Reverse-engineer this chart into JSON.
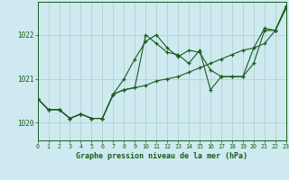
{
  "xlabel": "Graphe pression niveau de la mer (hPa)",
  "background_color": "#ceeaf0",
  "grid_color": "#aacccc",
  "line_color": "#1a5c1a",
  "x_ticks": [
    0,
    1,
    2,
    3,
    4,
    5,
    6,
    7,
    8,
    9,
    10,
    11,
    12,
    13,
    14,
    15,
    16,
    17,
    18,
    19,
    20,
    21,
    22,
    23
  ],
  "ylim": [
    1019.6,
    1022.75
  ],
  "xlim": [
    0,
    23
  ],
  "yticks": [
    1020,
    1021,
    1022
  ],
  "series": [
    [
      1020.55,
      1020.3,
      1020.3,
      1020.1,
      1020.2,
      1020.1,
      1020.1,
      1020.65,
      1020.75,
      1020.8,
      1020.85,
      1020.95,
      1021.0,
      1021.05,
      1021.15,
      1021.25,
      1021.35,
      1021.45,
      1021.55,
      1021.65,
      1021.7,
      1021.8,
      1022.1,
      1022.6
    ],
    [
      1020.55,
      1020.3,
      1020.3,
      1020.1,
      1020.2,
      1020.1,
      1020.1,
      1020.65,
      1020.75,
      1020.8,
      1022.0,
      1021.8,
      1021.6,
      1021.55,
      1021.35,
      1021.65,
      1020.75,
      1021.05,
      1021.05,
      1021.05,
      1021.35,
      1022.1,
      1022.1,
      1022.65
    ],
    [
      1020.55,
      1020.3,
      1020.3,
      1020.1,
      1020.2,
      1020.1,
      1020.1,
      1020.65,
      1021.0,
      1021.45,
      1021.85,
      1022.0,
      1021.7,
      1021.5,
      1021.65,
      1021.6,
      1021.2,
      1021.05,
      1021.05,
      1021.05,
      1021.7,
      1022.15,
      1022.1,
      1022.65
    ]
  ]
}
